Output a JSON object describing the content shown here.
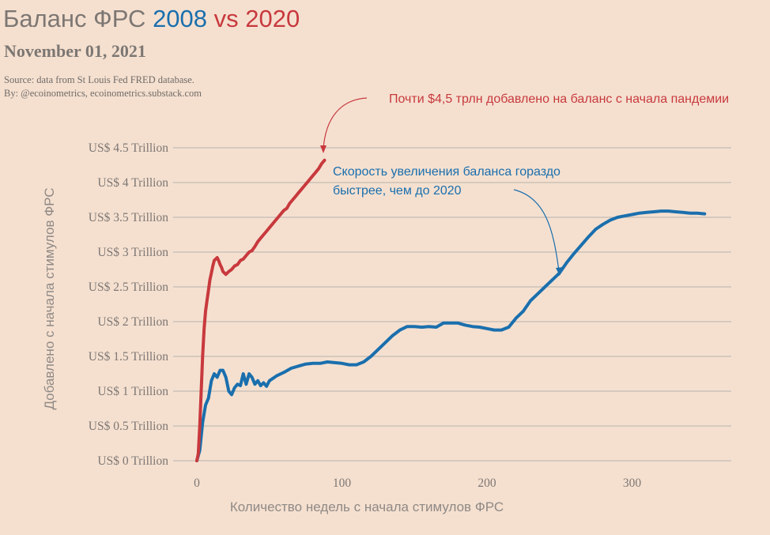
{
  "header": {
    "title_prefix": "Баланс ФРС",
    "title_a": "2008",
    "title_vs": "vs",
    "title_b": "2020",
    "date": "November 01, 2021",
    "source_line1": "Source: data from  St Louis Fed FRED database.",
    "source_line2": "By: @ecoinometrics, ecoinometrics.substack.com"
  },
  "colors": {
    "background": "#f5e0d0",
    "series_2008": "#1a6fad",
    "series_2020": "#c8393d",
    "grid": "#b8b2ad",
    "text": "#7d7773"
  },
  "chart_data": {
    "type": "line",
    "xlabel": "Количество недель с начала стимулов ФРС",
    "ylabel": "Добавлено с начала стимулов ФРС",
    "xlim": [
      -15,
      370
    ],
    "ylim": [
      0,
      4.6
    ],
    "x_ticks": [
      0,
      100,
      200,
      300
    ],
    "y_ticks": [
      {
        "value": 0,
        "label": "US$ 0 Trillion"
      },
      {
        "value": 0.5,
        "label": "US$ 0.5 Trillion"
      },
      {
        "value": 1,
        "label": "US$ 1 Trillion"
      },
      {
        "value": 1.5,
        "label": "US$ 1.5 Trillion"
      },
      {
        "value": 2,
        "label": "US$ 2 Trillion"
      },
      {
        "value": 2.5,
        "label": "US$ 2.5 Trillion"
      },
      {
        "value": 3,
        "label": "US$ 3 Trillion"
      },
      {
        "value": 3.5,
        "label": "US$ 3.5 Trillion"
      },
      {
        "value": 4,
        "label": "US$ 4 Trillion"
      },
      {
        "value": 4.5,
        "label": "US$ 4.5 Trillion"
      }
    ],
    "grid": true,
    "series": [
      {
        "name": "2008",
        "x": [
          0,
          2,
          4,
          6,
          8,
          10,
          12,
          14,
          16,
          18,
          20,
          22,
          24,
          26,
          28,
          30,
          32,
          34,
          36,
          38,
          40,
          42,
          44,
          46,
          48,
          50,
          55,
          60,
          65,
          70,
          75,
          80,
          85,
          90,
          95,
          100,
          105,
          110,
          115,
          120,
          125,
          130,
          135,
          140,
          145,
          150,
          155,
          160,
          165,
          170,
          175,
          180,
          185,
          190,
          195,
          200,
          205,
          210,
          215,
          220,
          225,
          230,
          235,
          240,
          245,
          250,
          255,
          260,
          265,
          270,
          275,
          280,
          285,
          290,
          295,
          300,
          305,
          310,
          315,
          320,
          325,
          330,
          335,
          340,
          345,
          350
        ],
        "values": [
          0.0,
          0.15,
          0.55,
          0.8,
          0.9,
          1.15,
          1.25,
          1.2,
          1.3,
          1.3,
          1.2,
          1.0,
          0.95,
          1.05,
          1.1,
          1.08,
          1.25,
          1.1,
          1.25,
          1.2,
          1.1,
          1.15,
          1.08,
          1.12,
          1.07,
          1.15,
          1.22,
          1.27,
          1.33,
          1.36,
          1.39,
          1.4,
          1.4,
          1.42,
          1.41,
          1.4,
          1.38,
          1.38,
          1.42,
          1.5,
          1.6,
          1.7,
          1.8,
          1.88,
          1.93,
          1.93,
          1.92,
          1.93,
          1.92,
          1.98,
          1.98,
          1.98,
          1.95,
          1.93,
          1.92,
          1.9,
          1.88,
          1.88,
          1.92,
          2.05,
          2.15,
          2.3,
          2.4,
          2.5,
          2.6,
          2.7,
          2.85,
          2.98,
          3.1,
          3.22,
          3.33,
          3.4,
          3.46,
          3.5,
          3.52,
          3.54,
          3.56,
          3.57,
          3.58,
          3.59,
          3.59,
          3.58,
          3.57,
          3.56,
          3.56,
          3.55
        ]
      },
      {
        "name": "2020",
        "x": [
          0,
          1,
          2,
          3,
          4,
          5,
          6,
          7,
          8,
          9,
          10,
          11,
          12,
          13,
          14,
          15,
          16,
          17,
          18,
          19,
          20,
          22,
          24,
          26,
          28,
          30,
          32,
          34,
          36,
          38,
          40,
          42,
          44,
          46,
          48,
          50,
          52,
          54,
          56,
          58,
          60,
          62,
          64,
          66,
          68,
          70,
          72,
          74,
          76,
          78,
          80,
          82,
          84,
          86,
          88
        ],
        "values": [
          0.0,
          0.1,
          0.5,
          1.0,
          1.5,
          1.9,
          2.15,
          2.3,
          2.45,
          2.6,
          2.7,
          2.8,
          2.88,
          2.9,
          2.92,
          2.88,
          2.82,
          2.78,
          2.72,
          2.7,
          2.68,
          2.72,
          2.75,
          2.8,
          2.82,
          2.88,
          2.9,
          2.95,
          3.0,
          3.02,
          3.08,
          3.15,
          3.2,
          3.25,
          3.3,
          3.35,
          3.4,
          3.45,
          3.5,
          3.55,
          3.6,
          3.63,
          3.7,
          3.75,
          3.8,
          3.85,
          3.9,
          3.95,
          4.0,
          4.05,
          4.1,
          4.15,
          4.2,
          4.27,
          4.32
        ]
      }
    ],
    "annotations": [
      {
        "id": "red_note",
        "text": "Почти $4,5 трлн добавлено на баланс с начала пандемии"
      },
      {
        "id": "blue_note_line1",
        "text": "Скорость увеличения баланса гораздо"
      },
      {
        "id": "blue_note_line2",
        "text": "быстрее, чем до 2020"
      }
    ]
  }
}
